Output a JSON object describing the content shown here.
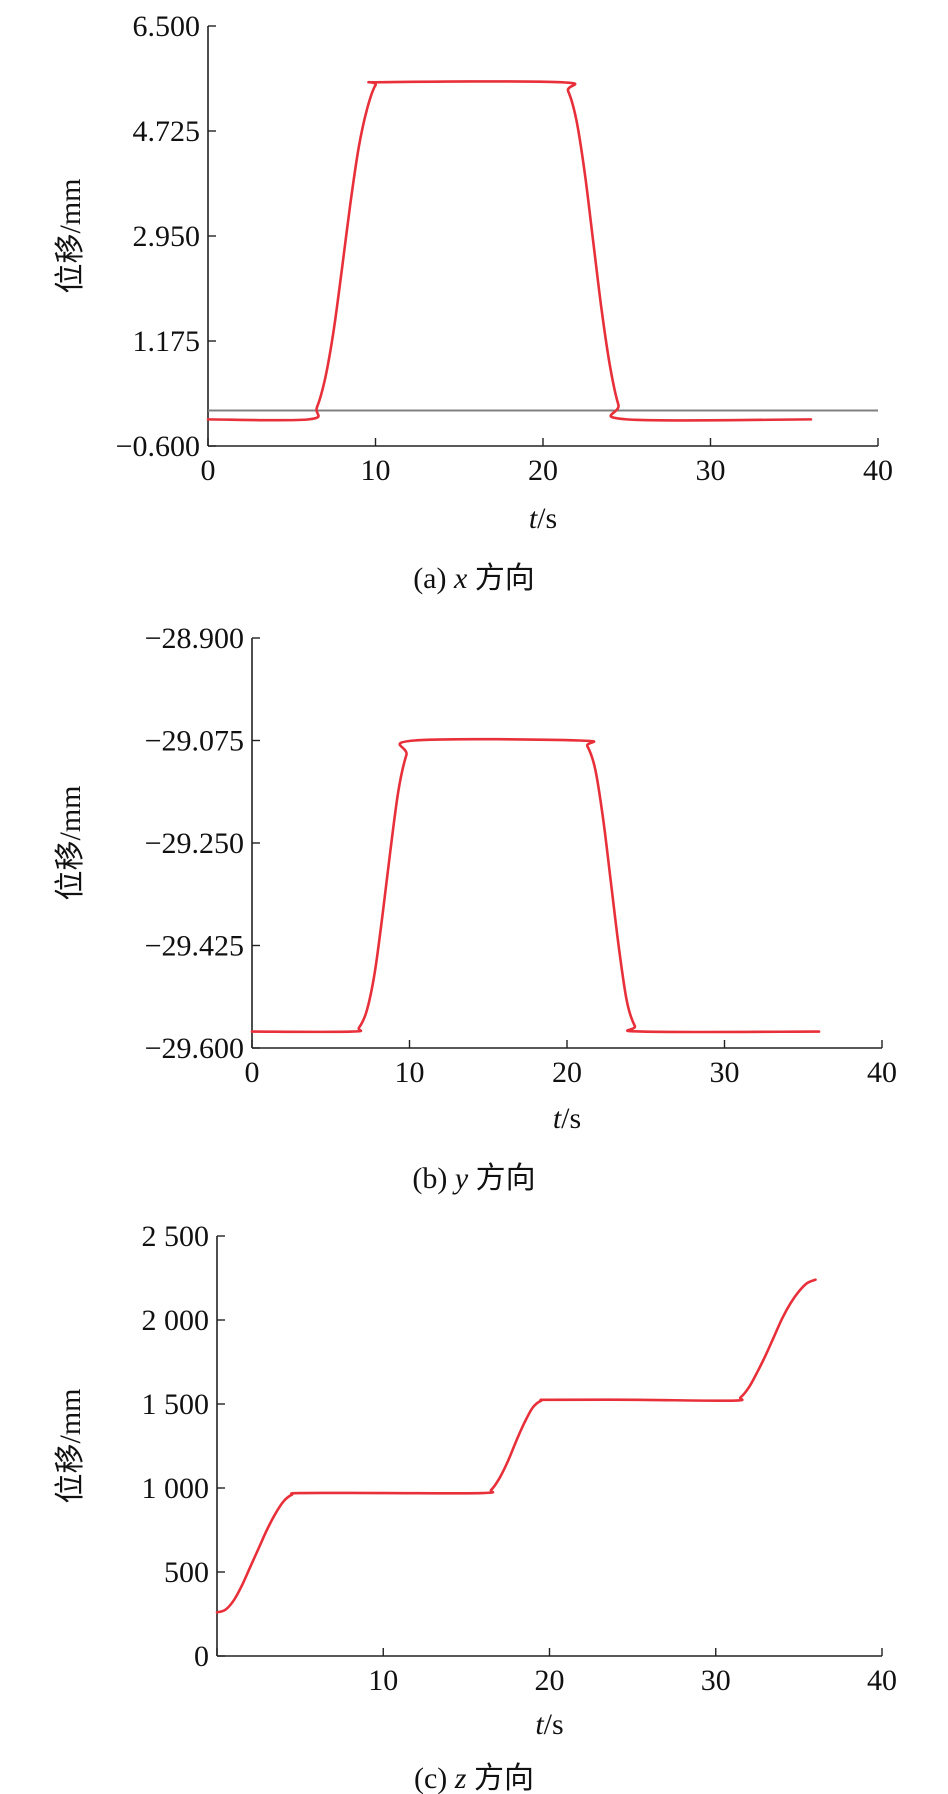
{
  "chart_data": [
    {
      "type": "line",
      "caption_prefix": "(a) ",
      "caption_var": "x",
      "caption_suffix": " 方向",
      "xlabel_var": "t",
      "xlabel_unit": "/s",
      "ylabel": "位移/mm",
      "xlim": [
        0,
        40
      ],
      "ylim": [
        -0.6,
        6.5
      ],
      "xticks": [
        "0",
        "10",
        "20",
        "30",
        "40"
      ],
      "yticks": [
        "−0.600",
        "1.175",
        "2.950",
        "4.725",
        "6.500"
      ],
      "reference_line": {
        "y": 0.0,
        "color": "#808080"
      },
      "series": [
        {
          "color": "#e8303a",
          "x": [
            0,
            6,
            6.5,
            7,
            7.5,
            8,
            8.5,
            9,
            9.5,
            10,
            10.5,
            21,
            21.5,
            22,
            22.5,
            23,
            23.5,
            24,
            24.5,
            25,
            36
          ],
          "y": [
            -0.15,
            -0.15,
            0.05,
            0.55,
            1.35,
            2.4,
            3.5,
            4.45,
            5.1,
            5.5,
            5.55,
            5.55,
            5.4,
            4.9,
            4.0,
            2.85,
            1.7,
            0.75,
            0.1,
            -0.15,
            -0.15
          ]
        }
      ]
    },
    {
      "type": "line",
      "caption_prefix": "(b) ",
      "caption_var": "y",
      "caption_suffix": " 方向",
      "xlabel_var": "t",
      "xlabel_unit": "/s",
      "ylabel": "位移/mm",
      "xlim": [
        0,
        40
      ],
      "ylim": [
        -29.6,
        -28.9
      ],
      "xticks": [
        "0",
        "10",
        "20",
        "30",
        "40"
      ],
      "yticks": [
        "−29.600",
        "−29.425",
        "−29.250",
        "−29.075",
        "−28.900"
      ],
      "series": [
        {
          "color": "#e8303a",
          "x": [
            0,
            6.3,
            6.8,
            7.3,
            7.8,
            8.3,
            8.8,
            9.3,
            9.8,
            10.3,
            20.8,
            21.3,
            21.8,
            22.3,
            22.8,
            23.3,
            23.8,
            24.3,
            24.8,
            36
          ],
          "y": [
            -29.572,
            -29.572,
            -29.565,
            -29.535,
            -29.47,
            -29.37,
            -29.26,
            -29.16,
            -29.1,
            -29.075,
            -29.075,
            -29.085,
            -29.125,
            -29.21,
            -29.32,
            -29.43,
            -29.52,
            -29.562,
            -29.572,
            -29.572
          ]
        }
      ]
    },
    {
      "type": "line",
      "caption_prefix": "(c) ",
      "caption_var": "z",
      "caption_suffix": " 方向",
      "xlabel_var": "t",
      "xlabel_unit": "/s",
      "ylabel": "位移/mm",
      "xlim": [
        0,
        40
      ],
      "ylim": [
        0,
        2500
      ],
      "xticks": [
        "10",
        "20",
        "30",
        "40"
      ],
      "xtick_values": [
        10,
        20,
        30,
        40
      ],
      "yticks": [
        "0",
        "500",
        "1 000",
        "1 500",
        "2 000",
        "2 500"
      ],
      "series": [
        {
          "color": "#e8303a",
          "x": [
            0,
            0.5,
            1,
            1.5,
            2,
            2.5,
            3,
            3.5,
            4,
            4.5,
            5,
            10,
            16,
            16.5,
            17,
            17.5,
            18,
            18.5,
            19,
            19.5,
            20,
            25,
            31,
            31.5,
            32,
            32.5,
            33,
            33.5,
            34,
            34.5,
            35,
            35.5,
            36
          ],
          "y": [
            260,
            275,
            330,
            420,
            530,
            640,
            750,
            845,
            920,
            960,
            970,
            970,
            970,
            990,
            1060,
            1160,
            1280,
            1390,
            1480,
            1520,
            1525,
            1525,
            1520,
            1540,
            1600,
            1690,
            1790,
            1900,
            2010,
            2100,
            2170,
            2220,
            2240
          ]
        }
      ]
    }
  ]
}
